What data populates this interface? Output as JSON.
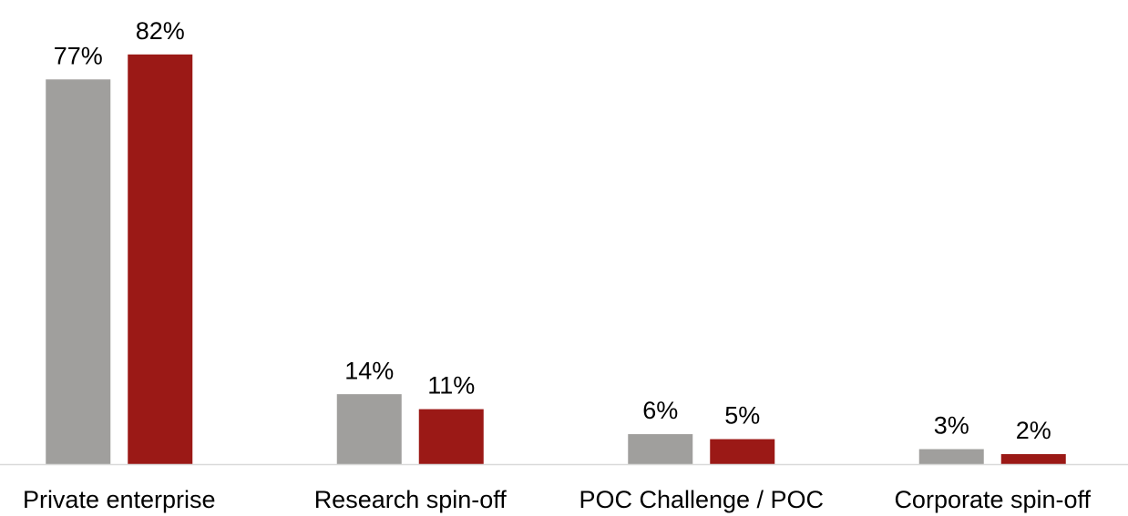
{
  "chart_data": {
    "type": "bar",
    "categories": [
      "Private enterprise",
      "Research spin-off",
      "POC Challenge / POC",
      "Corporate spin-off"
    ],
    "series": [
      {
        "color": "#a09f9d",
        "values": [
          77,
          14,
          6,
          3
        ],
        "value_labels": [
          "77%",
          "14%",
          "6%",
          "3%"
        ]
      },
      {
        "color": "#9b1916",
        "values": [
          82,
          11,
          5,
          2
        ],
        "value_labels": [
          "82%",
          "11%",
          "5%",
          "2%"
        ]
      }
    ]
  }
}
